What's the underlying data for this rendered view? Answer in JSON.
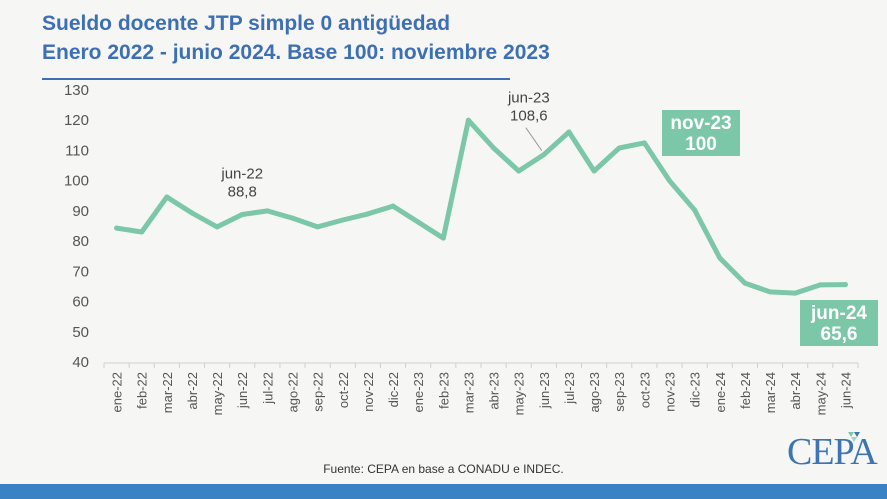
{
  "header": {
    "title_line1": "Sueldo docente JTP simple 0 antigüedad",
    "title_line2": "Enero 2022 - junio 2024. Base 100: noviembre 2023"
  },
  "footer": {
    "source": "Fuente: CEPA en base a CONADU e INDEC.",
    "logo_text": "CEPA"
  },
  "colors": {
    "title": "#3d6fb4",
    "line": "#7bc7a8",
    "label_box": "#7bc7a8",
    "footer_bar": "#3b82c4"
  },
  "chart_data": {
    "type": "line",
    "title": "Sueldo docente JTP simple 0 antigüedad",
    "subtitle": "Enero 2022 - junio 2024. Base 100: noviembre 2023",
    "xlabel": "",
    "ylabel": "",
    "ylim": [
      40,
      130
    ],
    "yticks": [
      40,
      50,
      60,
      70,
      80,
      90,
      100,
      110,
      120,
      130
    ],
    "grid": false,
    "categories": [
      "ene-22",
      "feb-22",
      "mar-22",
      "abr-22",
      "may-22",
      "jun-22",
      "jul-22",
      "ago-22",
      "sep-22",
      "oct-22",
      "nov-22",
      "dic-22",
      "ene-23",
      "feb-23",
      "mar-23",
      "abr-23",
      "may-23",
      "jun-23",
      "jul-23",
      "ago-23",
      "sep-23",
      "oct-23",
      "nov-23",
      "dic-23",
      "ene-24",
      "feb-24",
      "mar-24",
      "abr-24",
      "may-24",
      "jun-24"
    ],
    "series": [
      {
        "name": "Sueldo docente JTP simple 0 antigüedad (base 100 nov-23)",
        "values": [
          84.3,
          83.0,
          94.6,
          89.3,
          84.7,
          88.8,
          90.0,
          87.6,
          84.7,
          87.0,
          89.0,
          91.6,
          86.3,
          81.0,
          120.0,
          110.8,
          103.2,
          108.6,
          116.1,
          103.2,
          110.8,
          112.5,
          100.0,
          90.3,
          74.4,
          66.1,
          63.2,
          62.8,
          65.5,
          65.6
        ]
      }
    ],
    "annotations": [
      {
        "category": "jun-22",
        "label": "jun-22",
        "value_text": "88,8",
        "style": "plain"
      },
      {
        "category": "jun-23",
        "label": "jun-23",
        "value_text": "108,6",
        "style": "plain-leader"
      },
      {
        "category": "nov-23",
        "label": "nov-23",
        "value_text": "100",
        "style": "box"
      },
      {
        "category": "jun-24",
        "label": "jun-24",
        "value_text": "65,6",
        "style": "box"
      }
    ]
  }
}
